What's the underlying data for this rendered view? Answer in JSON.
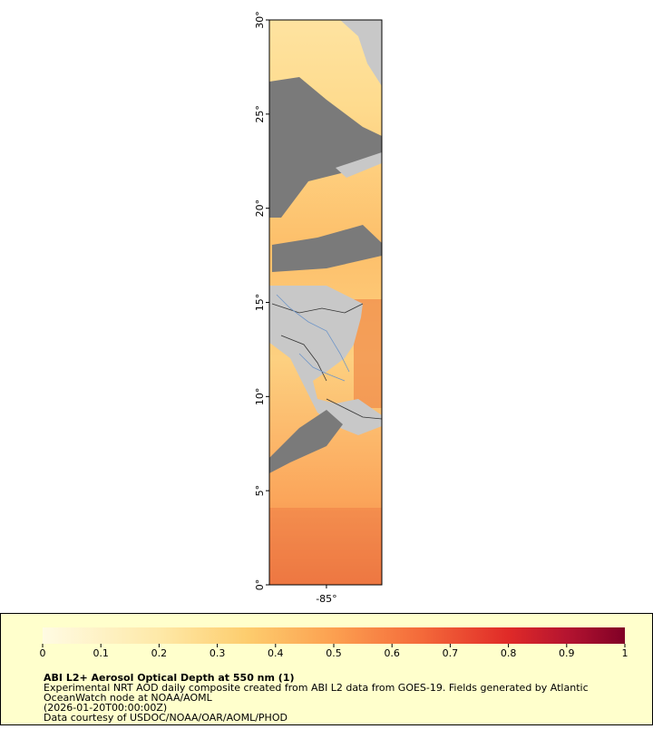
{
  "map": {
    "ylim": [
      0,
      30
    ],
    "xlim": [
      -88.03,
      -82.06
    ],
    "yticks": [
      {
        "value": 30,
        "label": "30°"
      },
      {
        "value": 25,
        "label": "25°"
      },
      {
        "value": 20,
        "label": "20°"
      },
      {
        "value": 15,
        "label": "15°"
      },
      {
        "value": 10,
        "label": "10°"
      },
      {
        "value": 5,
        "label": "5°"
      },
      {
        "value": 0,
        "label": "0°"
      }
    ],
    "xticks": [
      {
        "value": -85,
        "label": "-85°"
      }
    ]
  },
  "colorbar": {
    "lim": [
      0,
      1
    ],
    "ticks": [
      0,
      0.1,
      0.2,
      0.3,
      0.4,
      0.5,
      0.6,
      0.7,
      0.8,
      0.9,
      1
    ]
  },
  "legend": {
    "title": "ABI L2+ Aerosol Optical Depth at 550 nm (1)",
    "lines": [
      "Experimental NRT AOD daily composite created from ABI L2 data from GOES-19. Fields generated by Atlantic",
      "OceanWatch node at NOAA/AOML",
      "(2026-01-20T00:00:00Z)",
      "Data courtesy of USDOC/NOAA/OAR/AOML/PHOD"
    ]
  }
}
